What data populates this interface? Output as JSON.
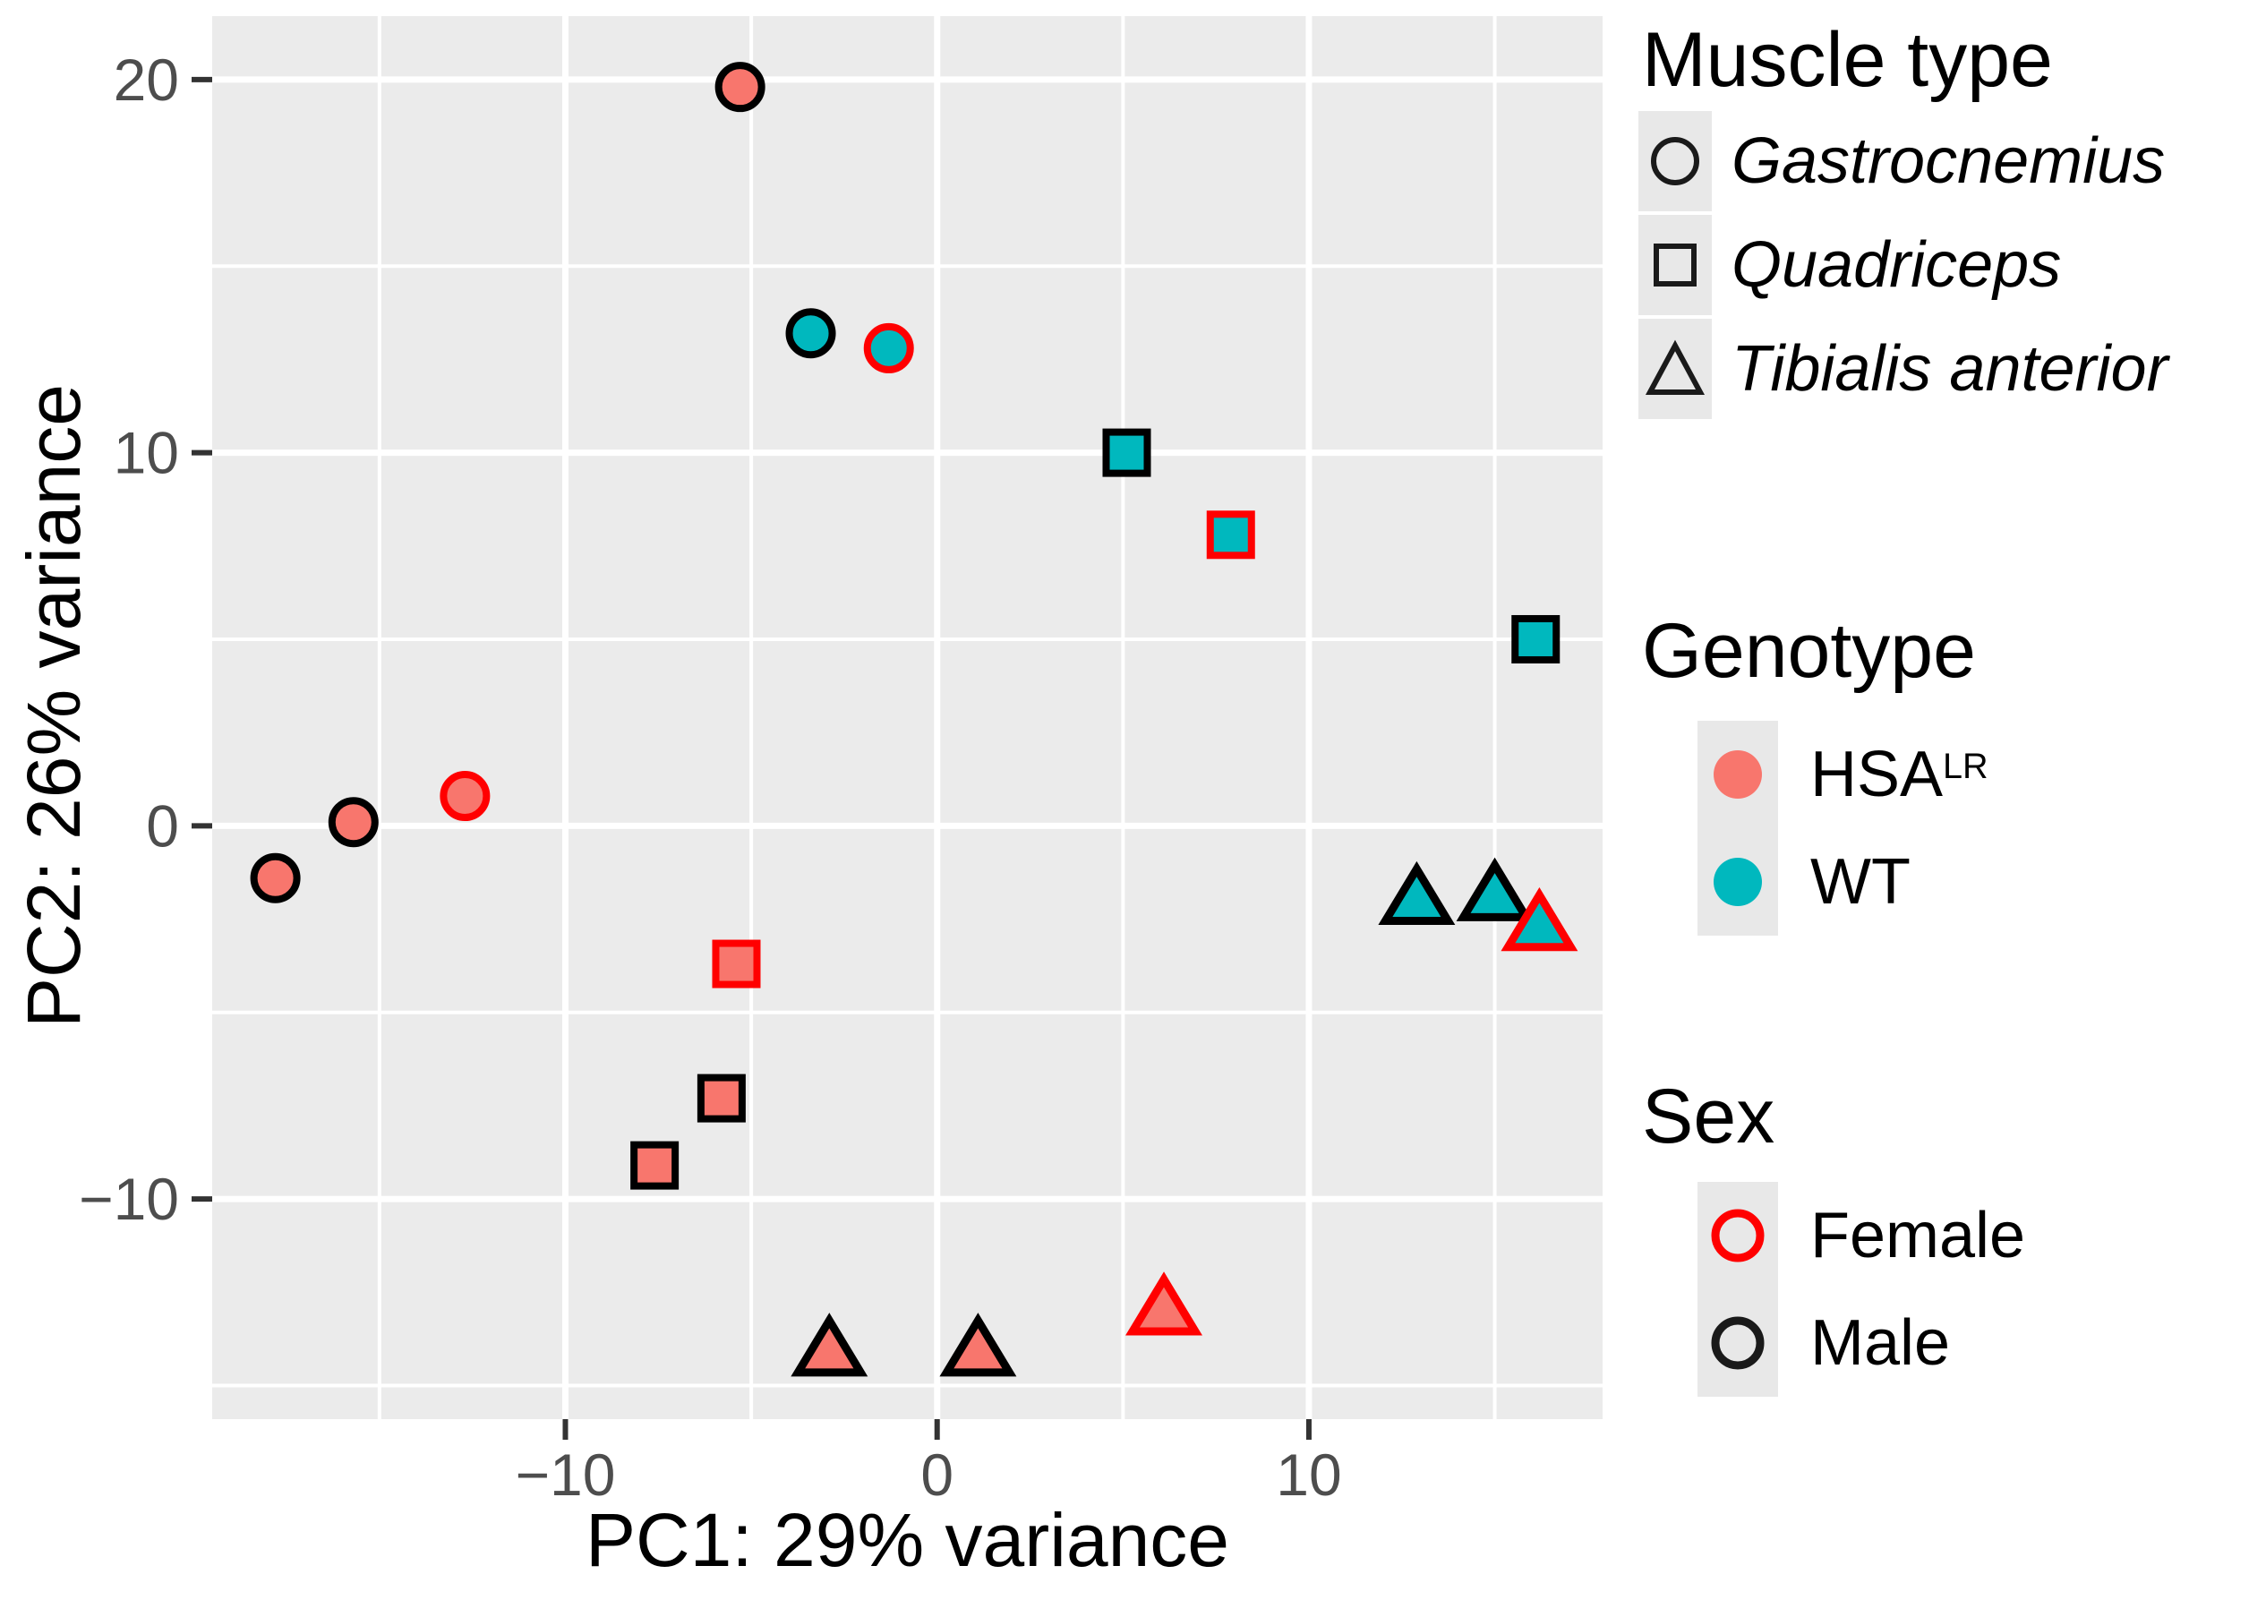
{
  "chart_data": {
    "type": "scatter",
    "xlabel": "PC1: 29% variance",
    "ylabel": "PC2: 26% variance",
    "xlim": [
      -19.5,
      17.9
    ],
    "ylim": [
      -15.9,
      21.7
    ],
    "grid": "on",
    "x_ticks": {
      "major": [
        -10,
        0,
        10
      ],
      "minor": [
        -15,
        -5,
        5,
        15
      ],
      "labels": [
        "−10",
        "0",
        "10"
      ]
    },
    "y_ticks": {
      "major": [
        20,
        10,
        0,
        -10
      ],
      "minor": [
        15,
        5,
        -5,
        -15
      ],
      "labels": [
        "20",
        "10",
        "0",
        "−10"
      ]
    },
    "points": [
      {
        "x": -5.3,
        "y": 19.8,
        "muscle": "Gastrocnemius",
        "genotype": "HSALR",
        "sex": "Male",
        "shape": "circle",
        "note": "WT fill"
      },
      {
        "x": -3.4,
        "y": 13.2,
        "muscle": "Gastrocnemius",
        "genotype": "WT",
        "sex": "Male",
        "shape": "circle"
      },
      {
        "x": -1.3,
        "y": 12.8,
        "muscle": "Gastrocnemius",
        "genotype": "WT",
        "sex": "Female",
        "shape": "circle"
      },
      {
        "x": -12.7,
        "y": 0.8,
        "muscle": "Gastrocnemius",
        "genotype": "HSALR",
        "sex": "Female",
        "shape": "circle"
      },
      {
        "x": -15.7,
        "y": 0.1,
        "muscle": "Gastrocnemius",
        "genotype": "HSALR",
        "sex": "Male",
        "shape": "circle"
      },
      {
        "x": -17.8,
        "y": -1.4,
        "muscle": "Gastrocnemius",
        "genotype": "HSALR",
        "sex": "Male",
        "shape": "circle"
      },
      {
        "x": 5.1,
        "y": 10.0,
        "muscle": "Quadriceps",
        "genotype": "WT",
        "sex": "Male",
        "shape": "square"
      },
      {
        "x": 7.9,
        "y": 7.8,
        "muscle": "Quadriceps",
        "genotype": "WT",
        "sex": "Female",
        "shape": "square"
      },
      {
        "x": 16.1,
        "y": 5.0,
        "muscle": "Quadriceps",
        "genotype": "WT",
        "sex": "Male",
        "shape": "square"
      },
      {
        "x": -5.4,
        "y": -3.7,
        "muscle": "Quadriceps",
        "genotype": "HSALR",
        "sex": "Female",
        "shape": "square"
      },
      {
        "x": -5.8,
        "y": -7.3,
        "muscle": "Quadriceps",
        "genotype": "HSALR",
        "sex": "Male",
        "shape": "square"
      },
      {
        "x": -7.6,
        "y": -9.1,
        "muscle": "Quadriceps",
        "genotype": "HSALR",
        "sex": "Male",
        "shape": "square"
      },
      {
        "x": 12.9,
        "y": -1.9,
        "muscle": "Tibialis anterior",
        "genotype": "WT",
        "sex": "Male",
        "shape": "triangle"
      },
      {
        "x": 15.0,
        "y": -1.8,
        "muscle": "Tibialis anterior",
        "genotype": "WT",
        "sex": "Male",
        "shape": "triangle"
      },
      {
        "x": 16.2,
        "y": -2.6,
        "muscle": "Tibialis anterior",
        "genotype": "WT",
        "sex": "Female",
        "shape": "triangle"
      },
      {
        "x": -2.9,
        "y": -14.0,
        "muscle": "Tibialis anterior",
        "genotype": "HSALR",
        "sex": "Male",
        "shape": "triangle"
      },
      {
        "x": 1.1,
        "y": -14.0,
        "muscle": "Tibialis anterior",
        "genotype": "HSALR",
        "sex": "Male",
        "shape": "triangle"
      },
      {
        "x": 6.1,
        "y": -12.9,
        "muscle": "Tibialis anterior",
        "genotype": "HSALR",
        "sex": "Female",
        "shape": "triangle"
      }
    ],
    "colors": {
      "HSALR": "#F8766D",
      "WT": "#00B8BE",
      "female_outline": "#FF0000",
      "male_outline": "#000000",
      "panel_bg": "#EBEBEB",
      "grid": "#FFFFFF",
      "tick_mark": "#333333",
      "tick_text": "#4D4D4D"
    }
  },
  "axes": {
    "x_title": "PC1: 29% variance",
    "y_title": "PC2: 26% variance"
  },
  "legend": {
    "muscle": {
      "title": "Muscle type",
      "items": [
        {
          "shape": "circle",
          "label": "Gastrocnemius"
        },
        {
          "shape": "square",
          "label": "Quadriceps"
        },
        {
          "shape": "triangle",
          "label": "Tibialis anterior"
        }
      ]
    },
    "genotype": {
      "title": "Genotype",
      "items": [
        {
          "label": "HSA",
          "sup": "LR",
          "color": "#F8766D"
        },
        {
          "label": "WT",
          "sup": "",
          "color": "#00B8BE"
        }
      ]
    },
    "sex": {
      "title": "Sex",
      "items": [
        {
          "label": "Female",
          "color": "#FF0000"
        },
        {
          "label": "Male",
          "color": "#1A1A1A"
        }
      ]
    }
  }
}
